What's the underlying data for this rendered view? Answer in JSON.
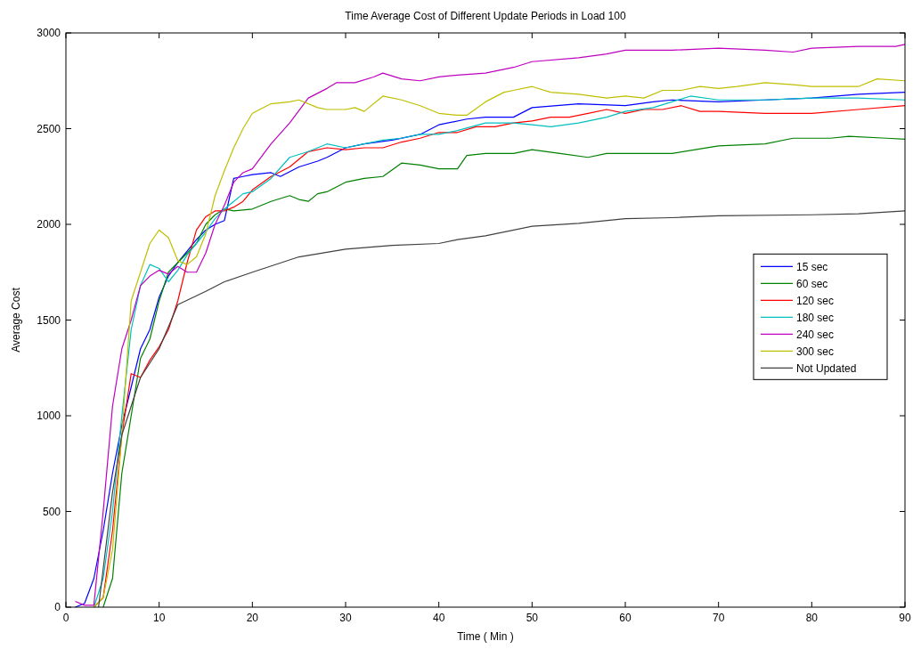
{
  "chart_data": {
    "type": "line",
    "title": "Time Average Cost of Different Update Periods in Load 100",
    "xlabel": "Time ( Min )",
    "ylabel": "Average Cost",
    "xlim": [
      0,
      90
    ],
    "ylim": [
      0,
      3000
    ],
    "xticks": [
      0,
      10,
      20,
      30,
      40,
      50,
      60,
      70,
      80,
      90
    ],
    "yticks": [
      0,
      500,
      1000,
      1500,
      2000,
      2500,
      3000
    ],
    "grid": false,
    "legend": "right",
    "marker": "none",
    "line_style": "solid",
    "series": [
      {
        "name": "15 sec",
        "color": "#0000ff",
        "x": [
          1,
          2,
          3,
          4,
          5,
          6,
          7,
          8,
          9,
          10,
          11,
          12,
          13,
          14,
          15,
          16,
          17,
          18,
          19,
          20,
          22,
          23,
          25,
          27,
          28,
          30,
          32,
          35,
          38,
          40,
          43,
          45,
          48,
          50,
          55,
          60,
          63,
          65,
          70,
          75,
          80,
          85,
          90
        ],
        "values": [
          0,
          20,
          150,
          400,
          700,
          950,
          1150,
          1350,
          1450,
          1620,
          1730,
          1800,
          1860,
          1920,
          1970,
          2000,
          2020,
          2240,
          2250,
          2260,
          2270,
          2250,
          2300,
          2330,
          2350,
          2400,
          2420,
          2440,
          2470,
          2520,
          2550,
          2560,
          2560,
          2610,
          2630,
          2620,
          2640,
          2650,
          2640,
          2650,
          2660,
          2680,
          2690
        ]
      },
      {
        "name": "60 sec",
        "color": "#008000",
        "x": [
          4,
          5,
          6,
          7,
          8,
          9,
          10,
          11,
          12,
          13,
          14,
          15,
          16,
          17,
          18,
          20,
          22,
          24,
          25,
          26,
          27,
          28,
          30,
          32,
          34,
          36,
          38,
          40,
          42,
          43,
          45,
          48,
          50,
          53,
          56,
          58,
          62,
          65,
          70,
          75,
          78,
          82,
          84,
          88,
          90
        ],
        "values": [
          0,
          150,
          700,
          1000,
          1300,
          1400,
          1600,
          1750,
          1800,
          1850,
          1900,
          2000,
          2050,
          2080,
          2070,
          2080,
          2120,
          2150,
          2130,
          2120,
          2160,
          2170,
          2220,
          2240,
          2250,
          2320,
          2310,
          2290,
          2290,
          2360,
          2370,
          2370,
          2390,
          2370,
          2350,
          2370,
          2370,
          2370,
          2410,
          2420,
          2450,
          2450,
          2460,
          2450,
          2445
        ]
      },
      {
        "name": "120 sec",
        "color": "#ff0000",
        "x": [
          3,
          4,
          5,
          6,
          7,
          8,
          9,
          10,
          11,
          12,
          13,
          14,
          15,
          16,
          17,
          18,
          19,
          20,
          22,
          24,
          26,
          28,
          30,
          32,
          34,
          36,
          38,
          40,
          42,
          44,
          46,
          48,
          50,
          52,
          54,
          56,
          58,
          60,
          62,
          64,
          66,
          68,
          70,
          75,
          80,
          85,
          90
        ],
        "values": [
          0,
          50,
          400,
          900,
          1220,
          1200,
          1290,
          1360,
          1450,
          1600,
          1800,
          1970,
          2040,
          2070,
          2070,
          2090,
          2120,
          2180,
          2250,
          2300,
          2380,
          2400,
          2390,
          2400,
          2400,
          2430,
          2450,
          2480,
          2480,
          2510,
          2510,
          2530,
          2540,
          2560,
          2560,
          2580,
          2600,
          2580,
          2600,
          2600,
          2620,
          2590,
          2590,
          2580,
          2580,
          2600,
          2620
        ]
      },
      {
        "name": "180 sec",
        "color": "#00bfbf",
        "x": [
          3,
          4,
          5,
          6,
          7,
          8,
          9,
          10,
          11,
          12,
          13,
          14,
          15,
          16,
          17,
          18,
          19,
          20,
          22,
          24,
          26,
          28,
          30,
          32,
          34,
          36,
          38,
          40,
          42,
          45,
          48,
          50,
          52,
          55,
          58,
          60,
          63,
          65,
          67,
          70,
          75,
          80,
          85,
          90
        ],
        "values": [
          0,
          150,
          500,
          1000,
          1450,
          1680,
          1790,
          1770,
          1700,
          1760,
          1840,
          1900,
          1960,
          2030,
          2080,
          2120,
          2160,
          2170,
          2240,
          2350,
          2380,
          2420,
          2400,
          2420,
          2440,
          2450,
          2470,
          2470,
          2490,
          2530,
          2530,
          2520,
          2510,
          2530,
          2560,
          2590,
          2610,
          2640,
          2670,
          2650,
          2650,
          2660,
          2660,
          2650
        ]
      },
      {
        "name": "240 sec",
        "color": "#bf00bf",
        "x": [
          1,
          2,
          3,
          4,
          5,
          6,
          7,
          8,
          9,
          10,
          11,
          12,
          13,
          14,
          15,
          16,
          17,
          18,
          19,
          20,
          22,
          24,
          26,
          28,
          29,
          31,
          33,
          34,
          36,
          38,
          40,
          42,
          45,
          48,
          50,
          55,
          58,
          60,
          63,
          65,
          70,
          75,
          78,
          80,
          85,
          89,
          90
        ],
        "values": [
          30,
          10,
          10,
          500,
          1050,
          1350,
          1500,
          1680,
          1730,
          1760,
          1740,
          1780,
          1750,
          1750,
          1850,
          2000,
          2100,
          2220,
          2270,
          2290,
          2420,
          2530,
          2660,
          2710,
          2740,
          2740,
          2770,
          2790,
          2760,
          2750,
          2770,
          2780,
          2790,
          2820,
          2850,
          2870,
          2890,
          2910,
          2910,
          2910,
          2920,
          2910,
          2900,
          2920,
          2930,
          2930,
          2940
        ]
      },
      {
        "name": "300 sec",
        "color": "#bfbf00",
        "x": [
          3,
          4,
          5,
          6,
          7,
          8,
          9,
          10,
          11,
          12,
          13,
          14,
          15,
          16,
          17,
          18,
          19,
          20,
          22,
          24,
          25,
          27,
          28,
          30,
          31,
          32,
          34,
          36,
          38,
          40,
          42,
          43,
          45,
          47,
          48,
          50,
          52,
          55,
          58,
          60,
          62,
          64,
          66,
          68,
          70,
          72,
          75,
          78,
          80,
          85,
          87,
          90
        ],
        "values": [
          0,
          50,
          300,
          900,
          1600,
          1750,
          1900,
          1970,
          1930,
          1810,
          1790,
          1830,
          1950,
          2150,
          2280,
          2400,
          2500,
          2580,
          2630,
          2640,
          2650,
          2610,
          2600,
          2600,
          2610,
          2590,
          2670,
          2650,
          2620,
          2580,
          2570,
          2570,
          2640,
          2690,
          2700,
          2720,
          2690,
          2680,
          2660,
          2670,
          2660,
          2700,
          2700,
          2720,
          2710,
          2720,
          2740,
          2730,
          2720,
          2720,
          2760,
          2750
        ]
      },
      {
        "name": "Not Updated",
        "color": "#404040",
        "x": [
          3.5,
          5,
          6,
          8,
          10,
          12,
          15,
          17,
          20,
          25,
          30,
          35,
          40,
          42,
          45,
          50,
          55,
          60,
          65,
          70,
          80,
          85,
          90
        ],
        "values": [
          0,
          600,
          900,
          1200,
          1350,
          1580,
          1650,
          1700,
          1750,
          1830,
          1870,
          1890,
          1900,
          1920,
          1940,
          1990,
          2005,
          2030,
          2035,
          2045,
          2050,
          2055,
          2070
        ]
      }
    ]
  }
}
